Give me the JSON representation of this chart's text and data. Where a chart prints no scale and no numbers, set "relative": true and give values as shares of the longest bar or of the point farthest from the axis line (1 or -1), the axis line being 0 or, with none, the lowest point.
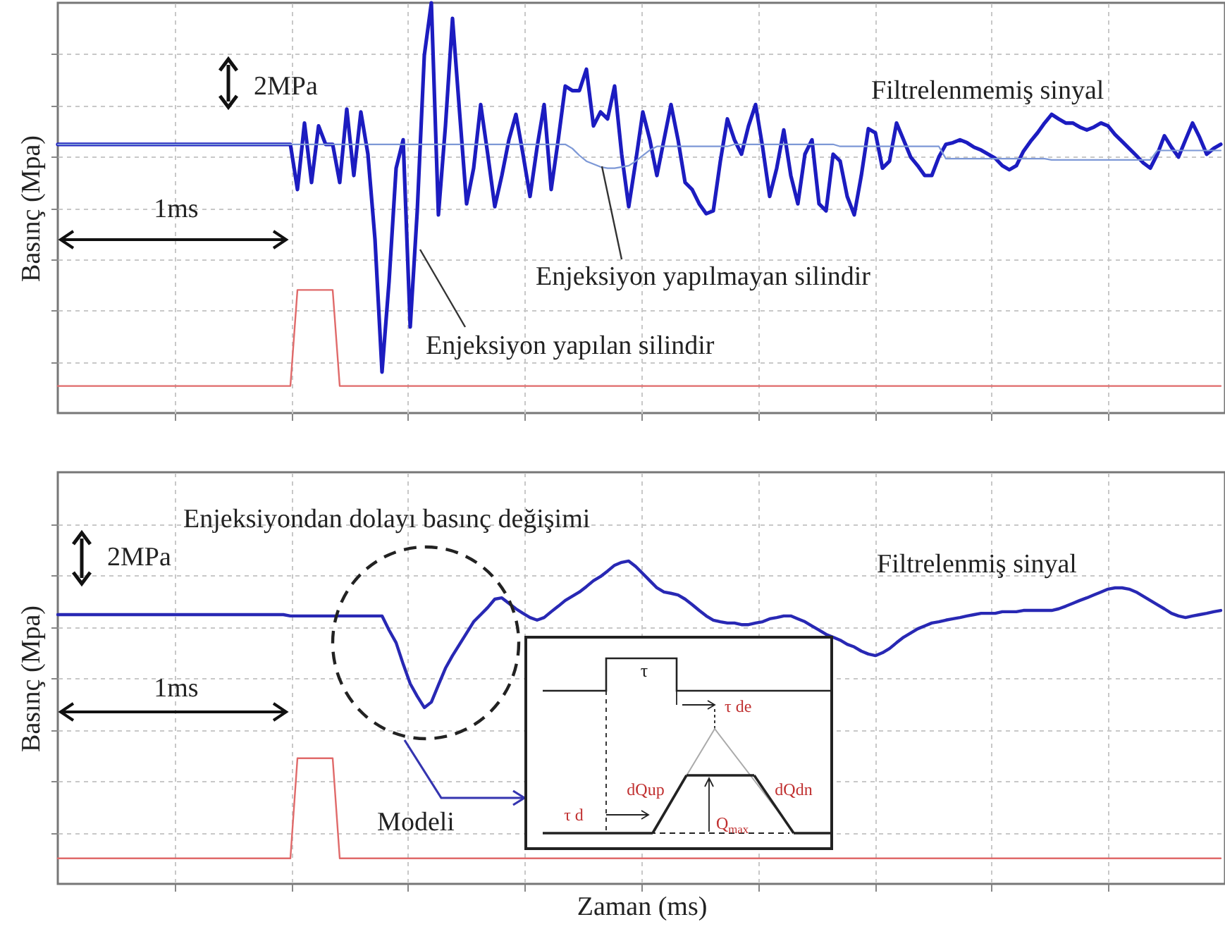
{
  "chart_data": [
    {
      "type": "line",
      "relative": true,
      "ylabel": "Basınç (Mpa)",
      "grid": true,
      "tick_labels": false,
      "categories": [
        null,
        null,
        null,
        null,
        null,
        null,
        null,
        null,
        null,
        null,
        null,
        null,
        null,
        null,
        null,
        null,
        null,
        null,
        null,
        null,
        null,
        null,
        null,
        null,
        null,
        null,
        null,
        null,
        null,
        null,
        null,
        null,
        null,
        null,
        null,
        null,
        null,
        null,
        null,
        null,
        null,
        null,
        null,
        null,
        null,
        null,
        null,
        null,
        null,
        null,
        null,
        null,
        null,
        null,
        null,
        null,
        null,
        null,
        null,
        null,
        null,
        null,
        null,
        null,
        null,
        null,
        null,
        null,
        null,
        null,
        null,
        null,
        null,
        null,
        null,
        null,
        null,
        null,
        null,
        null,
        null,
        null,
        null,
        null,
        null,
        null,
        null,
        null,
        null,
        null,
        null,
        null,
        null,
        null,
        null,
        null,
        null,
        null,
        null,
        null,
        null,
        null,
        null,
        null,
        null,
        null,
        null,
        null,
        null,
        null,
        null,
        null,
        null,
        null,
        null,
        null,
        null,
        null,
        null,
        null,
        null,
        null,
        null,
        null,
        null,
        null,
        null,
        null,
        null,
        null,
        null,
        null,
        null,
        null,
        null,
        null,
        null,
        null,
        null,
        null,
        null,
        null,
        null,
        null,
        null,
        null,
        null,
        null,
        null,
        null,
        null,
        null,
        null,
        null,
        null,
        null,
        null,
        null,
        null,
        null,
        null,
        null,
        null,
        null,
        null,
        null
      ],
      "annotations": [
        "2MPa",
        "1ms",
        "Filtrelenmemiş sinyal"
      ],
      "series": [
        {
          "name": "Enjeksiyon yapılan silindir",
          "color": "#1c1cc0",
          "values": [
            0.655,
            0.655,
            0.655,
            0.655,
            0.655,
            0.655,
            0.655,
            0.655,
            0.655,
            0.655,
            0.655,
            0.655,
            0.655,
            0.655,
            0.655,
            0.655,
            0.655,
            0.655,
            0.655,
            0.655,
            0.655,
            0.655,
            0.655,
            0.655,
            0.655,
            0.655,
            0.655,
            0.655,
            0.655,
            0.655,
            0.655,
            0.655,
            0.655,
            0.655,
            0.545,
            0.707,
            0.562,
            0.7,
            0.655,
            0.655,
            0.562,
            0.741,
            0.579,
            0.734,
            0.631,
            0.424,
            0.1,
            0.321,
            0.597,
            0.666,
            0.21,
            0.493,
            0.872,
            1.0,
            0.483,
            0.7,
            0.962,
            0.734,
            0.51,
            0.597,
            0.752,
            0.631,
            0.503,
            0.579,
            0.666,
            0.728,
            0.631,
            0.528,
            0.648,
            0.752,
            0.545,
            0.666,
            0.797,
            0.786,
            0.786,
            0.838,
            0.7,
            0.734,
            0.717,
            0.797,
            0.631,
            0.503,
            0.614,
            0.734,
            0.666,
            0.579,
            0.666,
            0.752,
            0.666,
            0.562,
            0.545,
            0.51,
            0.486,
            0.493,
            0.614,
            0.717,
            0.666,
            0.631,
            0.7,
            0.752,
            0.648,
            0.528,
            0.597,
            0.69,
            0.579,
            0.51,
            0.631,
            0.666,
            0.51,
            0.493,
            0.631,
            0.614,
            0.528,
            0.483,
            0.579,
            0.693,
            0.683,
            0.597,
            0.614,
            0.707,
            0.666,
            0.624,
            0.603,
            0.579,
            0.579,
            0.624,
            0.655,
            0.659,
            0.666,
            0.659,
            0.648,
            0.641,
            0.631,
            0.621,
            0.603,
            0.593,
            0.603,
            0.638,
            0.662,
            0.683,
            0.707,
            0.728,
            0.717,
            0.707,
            0.707,
            0.697,
            0.69,
            0.697,
            0.707,
            0.7,
            0.679,
            0.662,
            0.645,
            0.628,
            0.61,
            0.597,
            0.631,
            0.676,
            0.648,
            0.624,
            0.666,
            0.707,
            0.672,
            0.631,
            0.645,
            0.655
          ]
        },
        {
          "name": "Enjeksiyon yapılmayan silindir",
          "color": "#7d98d6",
          "values": [
            0.655,
            0.655,
            0.655,
            0.655,
            0.655,
            0.655,
            0.655,
            0.655,
            0.655,
            0.655,
            0.655,
            0.655,
            0.655,
            0.655,
            0.655,
            0.655,
            0.655,
            0.655,
            0.655,
            0.655,
            0.655,
            0.655,
            0.655,
            0.655,
            0.655,
            0.655,
            0.655,
            0.655,
            0.655,
            0.655,
            0.655,
            0.655,
            0.655,
            0.655,
            0.655,
            0.655,
            0.655,
            0.655,
            0.655,
            0.655,
            0.655,
            0.655,
            0.655,
            0.655,
            0.655,
            0.655,
            0.655,
            0.655,
            0.655,
            0.655,
            0.655,
            0.655,
            0.655,
            0.655,
            0.655,
            0.655,
            0.655,
            0.655,
            0.655,
            0.655,
            0.655,
            0.655,
            0.655,
            0.655,
            0.655,
            0.655,
            0.655,
            0.655,
            0.655,
            0.655,
            0.655,
            0.655,
            0.655,
            0.645,
            0.628,
            0.614,
            0.607,
            0.6,
            0.597,
            0.597,
            0.6,
            0.603,
            0.614,
            0.628,
            0.641,
            0.65,
            0.65,
            0.65,
            0.65,
            0.65,
            0.65,
            0.65,
            0.65,
            0.65,
            0.65,
            0.65,
            0.655,
            0.655,
            0.655,
            0.655,
            0.655,
            0.655,
            0.655,
            0.655,
            0.655,
            0.655,
            0.655,
            0.655,
            0.655,
            0.655,
            0.655,
            0.65,
            0.65,
            0.65,
            0.65,
            0.65,
            0.65,
            0.65,
            0.65,
            0.65,
            0.65,
            0.65,
            0.65,
            0.65,
            0.65,
            0.65,
            0.62,
            0.62,
            0.62,
            0.62,
            0.62,
            0.62,
            0.62,
            0.62,
            0.62,
            0.62,
            0.62,
            0.62,
            0.62,
            0.62,
            0.62,
            0.617,
            0.617,
            0.617,
            0.617,
            0.617,
            0.617,
            0.617,
            0.617,
            0.617,
            0.617,
            0.617,
            0.617,
            0.617,
            0.617,
            0.617,
            0.64,
            0.64,
            0.64,
            0.64,
            0.64,
            0.64,
            0.64,
            0.64,
            0.64,
            0.64
          ]
        },
        {
          "color": "#e06a6a",
          "values": [
            0.066,
            0.066,
            0.066,
            0.066,
            0.066,
            0.066,
            0.066,
            0.066,
            0.066,
            0.066,
            0.066,
            0.066,
            0.066,
            0.066,
            0.066,
            0.066,
            0.066,
            0.066,
            0.066,
            0.066,
            0.066,
            0.066,
            0.066,
            0.066,
            0.066,
            0.066,
            0.066,
            0.066,
            0.066,
            0.066,
            0.066,
            0.066,
            0.066,
            0.066,
            0.3,
            0.3,
            0.3,
            0.3,
            0.3,
            0.3,
            0.066,
            0.066,
            0.066,
            0.066,
            0.066,
            0.066,
            0.066,
            0.066,
            0.066,
            0.066,
            0.066,
            0.066,
            0.066,
            0.066,
            0.066,
            0.066,
            0.066,
            0.066,
            0.066,
            0.066,
            0.066,
            0.066,
            0.066,
            0.066,
            0.066,
            0.066,
            0.066,
            0.066,
            0.066,
            0.066,
            0.066,
            0.066,
            0.066,
            0.066,
            0.066,
            0.066,
            0.066,
            0.066,
            0.066,
            0.066,
            0.066,
            0.066,
            0.066,
            0.066,
            0.066,
            0.066,
            0.066,
            0.066,
            0.066,
            0.066,
            0.066,
            0.066,
            0.066,
            0.066,
            0.066,
            0.066,
            0.066,
            0.066,
            0.066,
            0.066,
            0.066,
            0.066,
            0.066,
            0.066,
            0.066,
            0.066,
            0.066,
            0.066,
            0.066,
            0.066,
            0.066,
            0.066,
            0.066,
            0.066,
            0.066,
            0.066,
            0.066,
            0.066,
            0.066,
            0.066,
            0.066,
            0.066,
            0.066,
            0.066,
            0.066,
            0.066,
            0.066,
            0.066,
            0.066,
            0.066,
            0.066,
            0.066,
            0.066,
            0.066,
            0.066,
            0.066,
            0.066,
            0.066,
            0.066,
            0.066,
            0.066,
            0.066,
            0.066,
            0.066,
            0.066,
            0.066,
            0.066,
            0.066,
            0.066,
            0.066,
            0.066,
            0.066,
            0.066,
            0.066,
            0.066,
            0.066,
            0.066,
            0.066,
            0.066,
            0.066,
            0.066,
            0.066,
            0.066,
            0.066,
            0.066,
            0.066
          ]
        }
      ]
    },
    {
      "type": "line",
      "relative": true,
      "ylabel": "Basınç (Mpa)",
      "xlabel": "Zaman (ms)",
      "grid": true,
      "tick_labels": false,
      "categories": [
        null,
        null,
        null,
        null,
        null,
        null,
        null,
        null,
        null,
        null,
        null,
        null,
        null,
        null,
        null,
        null,
        null,
        null,
        null,
        null,
        null,
        null,
        null,
        null,
        null,
        null,
        null,
        null,
        null,
        null,
        null,
        null,
        null,
        null,
        null,
        null,
        null,
        null,
        null,
        null,
        null,
        null,
        null,
        null,
        null,
        null,
        null,
        null,
        null,
        null,
        null,
        null,
        null,
        null,
        null,
        null,
        null,
        null,
        null,
        null,
        null,
        null,
        null,
        null,
        null,
        null,
        null,
        null,
        null,
        null,
        null,
        null,
        null,
        null,
        null,
        null,
        null,
        null,
        null,
        null,
        null,
        null,
        null,
        null,
        null,
        null,
        null,
        null,
        null,
        null,
        null,
        null,
        null,
        null,
        null,
        null,
        null,
        null,
        null,
        null,
        null,
        null,
        null,
        null,
        null,
        null,
        null,
        null,
        null,
        null,
        null,
        null,
        null,
        null,
        null,
        null,
        null,
        null,
        null,
        null,
        null,
        null,
        null,
        null,
        null,
        null,
        null,
        null,
        null,
        null,
        null,
        null,
        null,
        null,
        null,
        null,
        null,
        null,
        null,
        null,
        null,
        null,
        null,
        null,
        null,
        null,
        null,
        null,
        null,
        null,
        null,
        null,
        null,
        null,
        null,
        null,
        null,
        null,
        null,
        null,
        null,
        null,
        null,
        null,
        null,
        null
      ],
      "annotations": [
        "Enjeksiyondan dolayı basınç değişimi",
        "2MPa",
        "1ms",
        "Filtrelenmiş sinyal",
        "Modeli",
        "τ",
        "τ de",
        "dQup",
        "dQdn",
        "τ d",
        "Q$_{max}$"
      ],
      "series": [
        {
          "color": "#2828b4",
          "values": [
            0.834,
            0.834,
            0.834,
            0.834,
            0.834,
            0.834,
            0.834,
            0.834,
            0.834,
            0.834,
            0.834,
            0.834,
            0.834,
            0.834,
            0.834,
            0.834,
            0.834,
            0.834,
            0.834,
            0.834,
            0.834,
            0.834,
            0.834,
            0.834,
            0.834,
            0.834,
            0.834,
            0.834,
            0.834,
            0.834,
            0.834,
            0.834,
            0.834,
            0.83,
            0.83,
            0.83,
            0.83,
            0.83,
            0.83,
            0.83,
            0.83,
            0.83,
            0.83,
            0.83,
            0.83,
            0.83,
            0.83,
            0.786,
            0.747,
            0.681,
            0.62,
            0.581,
            0.546,
            0.563,
            0.616,
            0.668,
            0.707,
            0.742,
            0.777,
            0.812,
            0.834,
            0.856,
            0.882,
            0.886,
            0.869,
            0.852,
            0.838,
            0.825,
            0.817,
            0.825,
            0.843,
            0.86,
            0.878,
            0.891,
            0.904,
            0.921,
            0.939,
            0.952,
            0.969,
            0.987,
            0.996,
            1.0,
            0.983,
            0.961,
            0.939,
            0.917,
            0.904,
            0.9,
            0.895,
            0.882,
            0.865,
            0.847,
            0.83,
            0.817,
            0.812,
            0.808,
            0.808,
            0.803,
            0.803,
            0.808,
            0.812,
            0.821,
            0.825,
            0.83,
            0.83,
            0.821,
            0.812,
            0.799,
            0.786,
            0.773,
            0.764,
            0.755,
            0.742,
            0.734,
            0.721,
            0.712,
            0.707,
            0.716,
            0.729,
            0.747,
            0.764,
            0.777,
            0.79,
            0.799,
            0.808,
            0.812,
            0.817,
            0.821,
            0.825,
            0.83,
            0.834,
            0.838,
            0.838,
            0.838,
            0.843,
            0.843,
            0.843,
            0.847,
            0.847,
            0.847,
            0.847,
            0.847,
            0.852,
            0.86,
            0.869,
            0.878,
            0.886,
            0.895,
            0.904,
            0.913,
            0.917,
            0.917,
            0.913,
            0.904,
            0.891,
            0.878,
            0.865,
            0.852,
            0.838,
            0.83,
            0.825,
            0.83,
            0.834,
            0.838,
            0.843,
            0.847
          ]
        },
        {
          "color": "#e06a6a",
          "values": [
            0.079,
            0.079,
            0.079,
            0.079,
            0.079,
            0.079,
            0.079,
            0.079,
            0.079,
            0.079,
            0.079,
            0.079,
            0.079,
            0.079,
            0.079,
            0.079,
            0.079,
            0.079,
            0.079,
            0.079,
            0.079,
            0.079,
            0.079,
            0.079,
            0.079,
            0.079,
            0.079,
            0.079,
            0.079,
            0.079,
            0.079,
            0.079,
            0.079,
            0.079,
            0.389,
            0.389,
            0.389,
            0.389,
            0.389,
            0.389,
            0.079,
            0.079,
            0.079,
            0.079,
            0.079,
            0.079,
            0.079,
            0.079,
            0.079,
            0.079,
            0.079,
            0.079,
            0.079,
            0.079,
            0.079,
            0.079,
            0.079,
            0.079,
            0.079,
            0.079,
            0.079,
            0.079,
            0.079,
            0.079,
            0.079,
            0.079,
            0.079,
            0.079,
            0.079,
            0.079,
            0.079,
            0.079,
            0.079,
            0.079,
            0.079,
            0.079,
            0.079,
            0.079,
            0.079,
            0.079,
            0.079,
            0.079,
            0.079,
            0.079,
            0.079,
            0.079,
            0.079,
            0.079,
            0.079,
            0.079,
            0.079,
            0.079,
            0.079,
            0.079,
            0.079,
            0.079,
            0.079,
            0.079,
            0.079,
            0.079,
            0.079,
            0.079,
            0.079,
            0.079,
            0.079,
            0.079,
            0.079,
            0.079,
            0.079,
            0.079,
            0.079,
            0.079,
            0.079,
            0.079,
            0.079,
            0.079,
            0.079,
            0.079,
            0.079,
            0.079,
            0.079,
            0.079,
            0.079,
            0.079,
            0.079,
            0.079,
            0.079,
            0.079,
            0.079,
            0.079,
            0.079,
            0.079,
            0.079,
            0.079,
            0.079,
            0.079,
            0.079,
            0.079,
            0.079,
            0.079,
            0.079,
            0.079,
            0.079,
            0.079,
            0.079,
            0.079,
            0.079,
            0.079,
            0.079,
            0.079,
            0.079,
            0.079,
            0.079,
            0.079,
            0.079,
            0.079,
            0.079,
            0.079,
            0.079,
            0.079,
            0.079,
            0.079,
            0.079,
            0.079,
            0.079,
            0.079
          ]
        }
      ]
    }
  ]
}
